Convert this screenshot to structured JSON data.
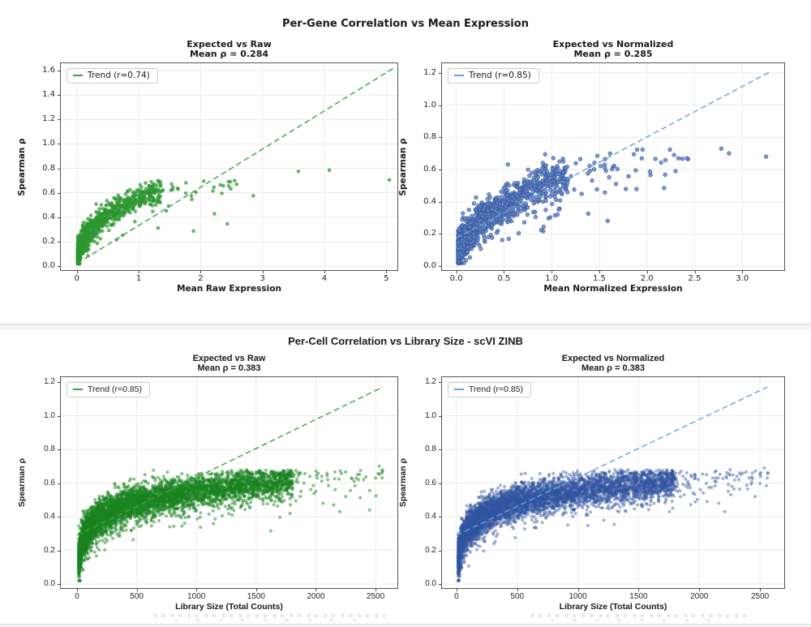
{
  "page": {
    "background": "#ffffff",
    "divider_color": "#d6d6d6"
  },
  "figures": [
    {
      "title": "Per-Gene Correlation vs Mean Expression"
    },
    {
      "title": "Per-Cell Correlation vs Library Size - scVI ZINB"
    }
  ],
  "chart_data": [
    {
      "type": "scatter",
      "figure_title": "Per-Gene Correlation vs Mean Expression",
      "title": "Expected vs Raw",
      "subtitle": "Mean ρ = 0.284",
      "mean_rho": 0.284,
      "legend": "Trend (r=0.74)",
      "trend_r": 0.74,
      "xlabel": "Mean Raw Expression",
      "ylabel": "Spearman ρ",
      "xlim": [
        -0.26,
        5.18
      ],
      "ylim": [
        -0.033,
        1.66
      ],
      "xticks": [
        0,
        1,
        2,
        3,
        4,
        5
      ],
      "xtick_labels": [
        "0",
        "1",
        "2",
        "3",
        "4",
        "5"
      ],
      "yticks": [
        0,
        0.2,
        0.4,
        0.6,
        0.8,
        1.0,
        1.2,
        1.4,
        1.6
      ],
      "ytick_labels": [
        "0.0",
        "0.2",
        "0.4",
        "0.6",
        "0.8",
        "1.0",
        "1.2",
        "1.4",
        "1.6"
      ],
      "grid": true,
      "legend_position": "upper left",
      "trend_line": {
        "x0": 0,
        "y0": 0.02,
        "x1": 5.15,
        "y1": 1.63,
        "style": "dashed"
      },
      "points_model": {
        "n": 950,
        "x_base": 0.015,
        "x_span": 1.35,
        "x_exp": 2.8,
        "tail_frac": 0.055,
        "tail_min": 0.95,
        "tail_max": 2.6,
        "rho_a": 0.55,
        "rho_b": 0.42,
        "sat_start": 0.58,
        "sat_factor": 0.35,
        "noise": 0.055,
        "low_frac": 0.035,
        "cap": 0.72,
        "description": "Dense per-gene cluster at low mean expression; Spearman rho rises like 0.55·x^0.42 then saturates near 0.6-0.7"
      },
      "outlier_points": [
        [
          2.05,
          0.695
        ],
        [
          2.2,
          0.615
        ],
        [
          2.32,
          0.665
        ],
        [
          2.45,
          0.69
        ],
        [
          2.55,
          0.7
        ],
        [
          2.85,
          0.575
        ],
        [
          3.58,
          0.775
        ],
        [
          4.08,
          0.785
        ],
        [
          5.05,
          0.705
        ]
      ],
      "colors": {
        "point": "#2c9630",
        "point_alpha": 0.72,
        "trend": "#3da14b"
      }
    },
    {
      "type": "scatter",
      "figure_title": "Per-Gene Correlation vs Mean Expression",
      "title": "Expected vs Normalized",
      "subtitle": "Mean ρ = 0.285",
      "mean_rho": 0.285,
      "legend": "Trend (r=0.85)",
      "trend_r": 0.85,
      "xlabel": "Mean Normalized Expression",
      "ylabel": "Spearman ρ",
      "xlim": [
        -0.15,
        3.44
      ],
      "ylim": [
        -0.025,
        1.26
      ],
      "xticks": [
        0,
        0.5,
        1,
        1.5,
        2,
        2.5,
        3
      ],
      "xtick_labels": [
        "0.0",
        "0.5",
        "1.0",
        "1.5",
        "2.0",
        "2.5",
        "3.0"
      ],
      "yticks": [
        0,
        0.2,
        0.4,
        0.6,
        0.8,
        1.0,
        1.2
      ],
      "ytick_labels": [
        "0.0",
        "0.2",
        "0.4",
        "0.6",
        "0.8",
        "1.0",
        "1.2"
      ],
      "grid": true,
      "legend_position": "upper left",
      "trend_line": {
        "x0": 0,
        "y0": 0.175,
        "x1": 3.3,
        "y1": 1.21,
        "style": "dashed"
      },
      "points_model": {
        "n": 1050,
        "x_base": 0.02,
        "x_span": 1.15,
        "x_exp": 2.4,
        "tail_frac": 0.08,
        "tail_min": 0.85,
        "tail_max": 2.45,
        "rho_a": 0.52,
        "rho_b": 0.45,
        "sat_start": 0.55,
        "sat_factor": 0.45,
        "noise": 0.06,
        "low_frac": 0.04,
        "cap": 0.75,
        "description": "Dense per-gene cluster; rho rises like 0.52·x^0.45, saturating near 0.6-0.75"
      },
      "outlier_points": [
        [
          2.78,
          0.73
        ],
        [
          2.86,
          0.7
        ],
        [
          3.25,
          0.68
        ],
        [
          2.33,
          0.67
        ],
        [
          2.42,
          0.67
        ],
        [
          2.18,
          0.485
        ],
        [
          2.3,
          0.59
        ]
      ],
      "colors": {
        "point": "#5c82c4",
        "point_alpha": 0.8,
        "point_edge": "#2f4e93",
        "trend": "#6f9fd8"
      }
    },
    {
      "type": "scatter",
      "figure_title": "Per-Cell Correlation vs Library Size - scVI ZINB",
      "title": "Expected vs Raw",
      "subtitle": "Mean ρ = 0.383",
      "mean_rho": 0.383,
      "legend": "Trend (r=0.85)",
      "trend_r": 0.85,
      "xlabel": "Library Size (Total Counts)",
      "ylabel": "Spearman ρ",
      "xlim": [
        -136,
        2683
      ],
      "ylim": [
        -0.024,
        1.229
      ],
      "xticks": [
        0,
        500,
        1000,
        1500,
        2000,
        2500
      ],
      "xtick_labels": [
        "0",
        "500",
        "1000",
        "1500",
        "2000",
        "2500"
      ],
      "yticks": [
        0,
        0.2,
        0.4,
        0.6,
        0.8,
        1.0,
        1.2
      ],
      "ytick_labels": [
        "0.0",
        "0.2",
        "0.4",
        "0.6",
        "0.8",
        "1.0",
        "1.2"
      ],
      "grid": true,
      "legend_position": "upper left",
      "trend_line": {
        "x0": 0,
        "y0": 0.29,
        "x1": 2560,
        "y1": 1.17,
        "style": "dashed"
      },
      "points_model": {
        "n": 5200,
        "x_base": 15,
        "x_span": 1790,
        "x_exp": 1.9,
        "tail_frac": 0.012,
        "tail_min": 1800,
        "tail_max": 2570,
        "rho_log_a": 0.097,
        "rho_log_b": -0.118,
        "noise": 0.05,
        "cap": 0.68,
        "low_frac": 0.03,
        "description": "Very dense per-cell band; rho ≈ 0.097·ln(librarySize) − 0.118, saturating near 0.6-0.68"
      },
      "outlier_points": [
        [
          1850,
          0.66
        ],
        [
          1870,
          0.52
        ],
        [
          1900,
          0.6
        ],
        [
          1950,
          0.64
        ],
        [
          1980,
          0.585
        ],
        [
          2000,
          0.55
        ],
        [
          2050,
          0.64
        ],
        [
          2060,
          0.48
        ],
        [
          2100,
          0.62
        ],
        [
          2150,
          0.47
        ],
        [
          2200,
          0.43
        ],
        [
          2250,
          0.52
        ],
        [
          2300,
          0.63
        ],
        [
          2350,
          0.65
        ],
        [
          2400,
          0.62
        ],
        [
          2450,
          0.44
        ],
        [
          2500,
          0.63
        ],
        [
          2530,
          0.7
        ],
        [
          2555,
          0.63
        ]
      ],
      "colors": {
        "point": "#1a8420",
        "point_alpha": 0.5,
        "trend": "#3da14b"
      }
    },
    {
      "type": "scatter",
      "figure_title": "Per-Cell Correlation vs Library Size - scVI ZINB",
      "title": "Expected vs Normalized",
      "subtitle": "Mean ρ = 0.383",
      "mean_rho": 0.383,
      "legend": "Trend (r=0.85)",
      "trend_r": 0.85,
      "xlabel": "Library Size (Total Counts)",
      "ylabel": "Spearman ρ",
      "xlim": [
        -120,
        2700
      ],
      "ylim": [
        -0.024,
        1.229
      ],
      "xticks": [
        0,
        500,
        1000,
        1500,
        2000,
        2500
      ],
      "xtick_labels": [
        "0",
        "500",
        "1000",
        "1500",
        "2000",
        "2500"
      ],
      "yticks": [
        0,
        0.2,
        0.4,
        0.6,
        0.8,
        1.0,
        1.2
      ],
      "ytick_labels": [
        "0.0",
        "0.2",
        "0.4",
        "0.6",
        "0.8",
        "1.0",
        "1.2"
      ],
      "grid": true,
      "legend_position": "upper left",
      "trend_line": {
        "x0": 0,
        "y0": 0.29,
        "x1": 2560,
        "y1": 1.17,
        "style": "dashed"
      },
      "points_model": {
        "n": 5200,
        "x_base": 15,
        "x_span": 1790,
        "x_exp": 1.9,
        "tail_frac": 0.012,
        "tail_min": 1800,
        "tail_max": 2570,
        "rho_log_a": 0.097,
        "rho_log_b": -0.118,
        "noise": 0.05,
        "cap": 0.68,
        "low_frac": 0.03,
        "description": "Very dense per-cell band; rho ≈ 0.097·ln(librarySize) − 0.118, saturating near 0.6-0.68"
      },
      "outlier_points": [
        [
          1850,
          0.67
        ],
        [
          1875,
          0.53
        ],
        [
          1905,
          0.61
        ],
        [
          1960,
          0.65
        ],
        [
          2010,
          0.56
        ],
        [
          2060,
          0.65
        ],
        [
          2065,
          0.49
        ],
        [
          2110,
          0.63
        ],
        [
          2160,
          0.48
        ],
        [
          2210,
          0.43
        ],
        [
          2260,
          0.53
        ],
        [
          2310,
          0.64
        ],
        [
          2360,
          0.66
        ],
        [
          2410,
          0.63
        ],
        [
          2460,
          0.52
        ],
        [
          2505,
          0.64
        ],
        [
          2535,
          0.69
        ],
        [
          2560,
          0.63
        ]
      ],
      "colors": {
        "point": "#3054a0",
        "point_alpha": 0.45,
        "trend": "#6f9fd8"
      }
    }
  ]
}
